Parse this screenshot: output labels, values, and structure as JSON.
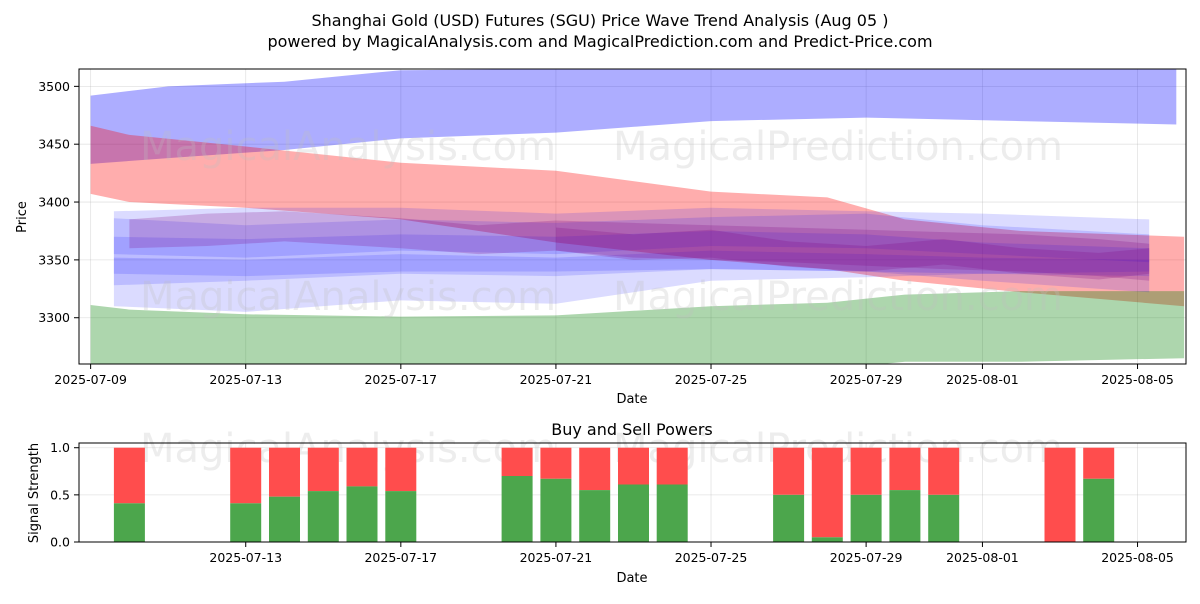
{
  "title_line1": "Shanghai Gold (USD) Futures (SGU) Price Wave Trend Analysis (Aug 05 )",
  "title_line2": "powered by MagicalAnalysis.com and MagicalPrediction.com and Predict-Price.com",
  "watermarks": [
    "MagicalAnalysis.com",
    "MagicalPrediction.com"
  ],
  "colors": {
    "blue": "#0000ff",
    "red": "#ff0000",
    "green": "#008000",
    "purple": "#800080",
    "buy": "#4ca64c",
    "sell": "#ff4d4d"
  },
  "chart_data": [
    {
      "type": "area",
      "title": "",
      "xlabel": "Date",
      "ylabel": "Price",
      "x_range": [
        "2025-07-09",
        "2025-08-06"
      ],
      "xlim": [
        -0.3,
        28.25
      ],
      "ylim": [
        3260,
        3515
      ],
      "grid": true,
      "x_ticks": [
        "2025-07-09",
        "2025-07-13",
        "2025-07-17",
        "2025-07-21",
        "2025-07-25",
        "2025-07-29",
        "2025-08-01",
        "2025-08-05"
      ],
      "y_ticks": [
        3300,
        3350,
        3400,
        3450,
        3500
      ],
      "bands": [
        {
          "color": "blue",
          "opacity": 0.32,
          "x": [
            0,
            2,
            5,
            8,
            12,
            16,
            20,
            24,
            28
          ],
          "upper": [
            3492,
            3500,
            3504,
            3514,
            3515,
            3515,
            3515,
            3515,
            3515
          ],
          "lower": [
            3433,
            3438,
            3445,
            3455,
            3460,
            3470,
            3473,
            3470,
            3467
          ]
        },
        {
          "color": "red",
          "opacity": 0.32,
          "x": [
            0,
            1,
            4,
            8,
            12,
            16,
            19,
            21,
            24,
            28.2
          ],
          "upper": [
            3466,
            3458,
            3448,
            3434,
            3427,
            3409,
            3404,
            3385,
            3375,
            3370
          ],
          "lower": [
            3407,
            3400,
            3395,
            3385,
            3365,
            3350,
            3342,
            3332,
            3322,
            3310
          ]
        },
        {
          "color": "green",
          "opacity": 0.32,
          "x": [
            0,
            1,
            4,
            8,
            12,
            16,
            19,
            21,
            24,
            28.2
          ],
          "upper": [
            3311,
            3307,
            3303,
            3301,
            3302,
            3310,
            3313,
            3320,
            3323,
            3323
          ],
          "lower": [
            3260,
            3255,
            3250,
            3245,
            3245,
            3250,
            3255,
            3262,
            3262,
            3265
          ]
        },
        {
          "color": "blue",
          "opacity": 0.14,
          "x": [
            0.6,
            4,
            8,
            12,
            16,
            20,
            23,
            27.3
          ],
          "upper": [
            3392,
            3395,
            3395,
            3390,
            3395,
            3392,
            3390,
            3385
          ],
          "lower": [
            3310,
            3305,
            3315,
            3312,
            3332,
            3335,
            3338,
            3340
          ]
        },
        {
          "color": "blue",
          "opacity": 0.14,
          "x": [
            0.6,
            4,
            8,
            12,
            16,
            20,
            23,
            27.3
          ],
          "upper": [
            3386,
            3380,
            3385,
            3382,
            3387,
            3390,
            3380,
            3372
          ],
          "lower": [
            3355,
            3352,
            3358,
            3355,
            3362,
            3360,
            3355,
            3348
          ]
        },
        {
          "color": "blue",
          "opacity": 0.14,
          "x": [
            0.6,
            4,
            8,
            12,
            16,
            20,
            23,
            27.3
          ],
          "upper": [
            3352,
            3350,
            3355,
            3352,
            3358,
            3355,
            3352,
            3350
          ],
          "lower": [
            3338,
            3336,
            3340,
            3340,
            3342,
            3340,
            3338,
            3336
          ]
        },
        {
          "color": "blue",
          "opacity": 0.14,
          "x": [
            0.6,
            4,
            8,
            12,
            16,
            20,
            23,
            27.3
          ],
          "upper": [
            3370,
            3368,
            3372,
            3370,
            3375,
            3372,
            3365,
            3360
          ],
          "lower": [
            3328,
            3332,
            3338,
            3336,
            3342,
            3340,
            3332,
            3322
          ]
        },
        {
          "color": "purple",
          "opacity": 0.22,
          "x": [
            1,
            3,
            5,
            8,
            10,
            12,
            14,
            16,
            18,
            20,
            22,
            24,
            26,
            27.3
          ],
          "upper": [
            3385,
            3390,
            3392,
            3386,
            3380,
            3384,
            3382,
            3380,
            3378,
            3376,
            3374,
            3372,
            3368,
            3364
          ],
          "lower": [
            3360,
            3362,
            3366,
            3360,
            3355,
            3358,
            3352,
            3350,
            3348,
            3345,
            3342,
            3340,
            3336,
            3332
          ]
        },
        {
          "color": "purple",
          "opacity": 0.22,
          "x": [
            12,
            14,
            16,
            18,
            20,
            22,
            24,
            26,
            27.3
          ],
          "upper": [
            3378,
            3372,
            3376,
            3366,
            3362,
            3368,
            3360,
            3356,
            3360
          ],
          "lower": [
            3358,
            3350,
            3352,
            3344,
            3340,
            3346,
            3338,
            3333,
            3338
          ]
        }
      ]
    },
    {
      "type": "bar",
      "title": "Buy and Sell Powers",
      "xlabel": "Date",
      "ylabel": "Signal Strength",
      "xlim": [
        -0.3,
        28.25
      ],
      "ylim": [
        0,
        1.05
      ],
      "grid": true,
      "x_ticks": [
        "2025-07-13",
        "2025-07-17",
        "2025-07-21",
        "2025-07-25",
        "2025-07-29",
        "2025-08-01",
        "2025-08-05"
      ],
      "y_ticks": [
        "0.0",
        "0.5",
        "1.0"
      ],
      "series": [
        {
          "name": "Buy",
          "color": "buy"
        },
        {
          "name": "Sell",
          "color": "sell"
        }
      ],
      "bars": [
        {
          "date": "2025-07-10",
          "buy": 0.41
        },
        {
          "date": "2025-07-13",
          "buy": 0.41
        },
        {
          "date": "2025-07-14",
          "buy": 0.48
        },
        {
          "date": "2025-07-15",
          "buy": 0.54
        },
        {
          "date": "2025-07-16",
          "buy": 0.59
        },
        {
          "date": "2025-07-17",
          "buy": 0.54
        },
        {
          "date": "2025-07-20",
          "buy": 0.7
        },
        {
          "date": "2025-07-21",
          "buy": 0.67
        },
        {
          "date": "2025-07-22",
          "buy": 0.55
        },
        {
          "date": "2025-07-23",
          "buy": 0.61
        },
        {
          "date": "2025-07-24",
          "buy": 0.61
        },
        {
          "date": "2025-07-27",
          "buy": 0.5
        },
        {
          "date": "2025-07-28",
          "buy": 0.05
        },
        {
          "date": "2025-07-29",
          "buy": 0.5
        },
        {
          "date": "2025-07-30",
          "buy": 0.55
        },
        {
          "date": "2025-07-31",
          "buy": 0.5
        },
        {
          "date": "2025-08-03",
          "buy": 0.0
        },
        {
          "date": "2025-08-04",
          "buy": 0.67
        }
      ]
    }
  ]
}
